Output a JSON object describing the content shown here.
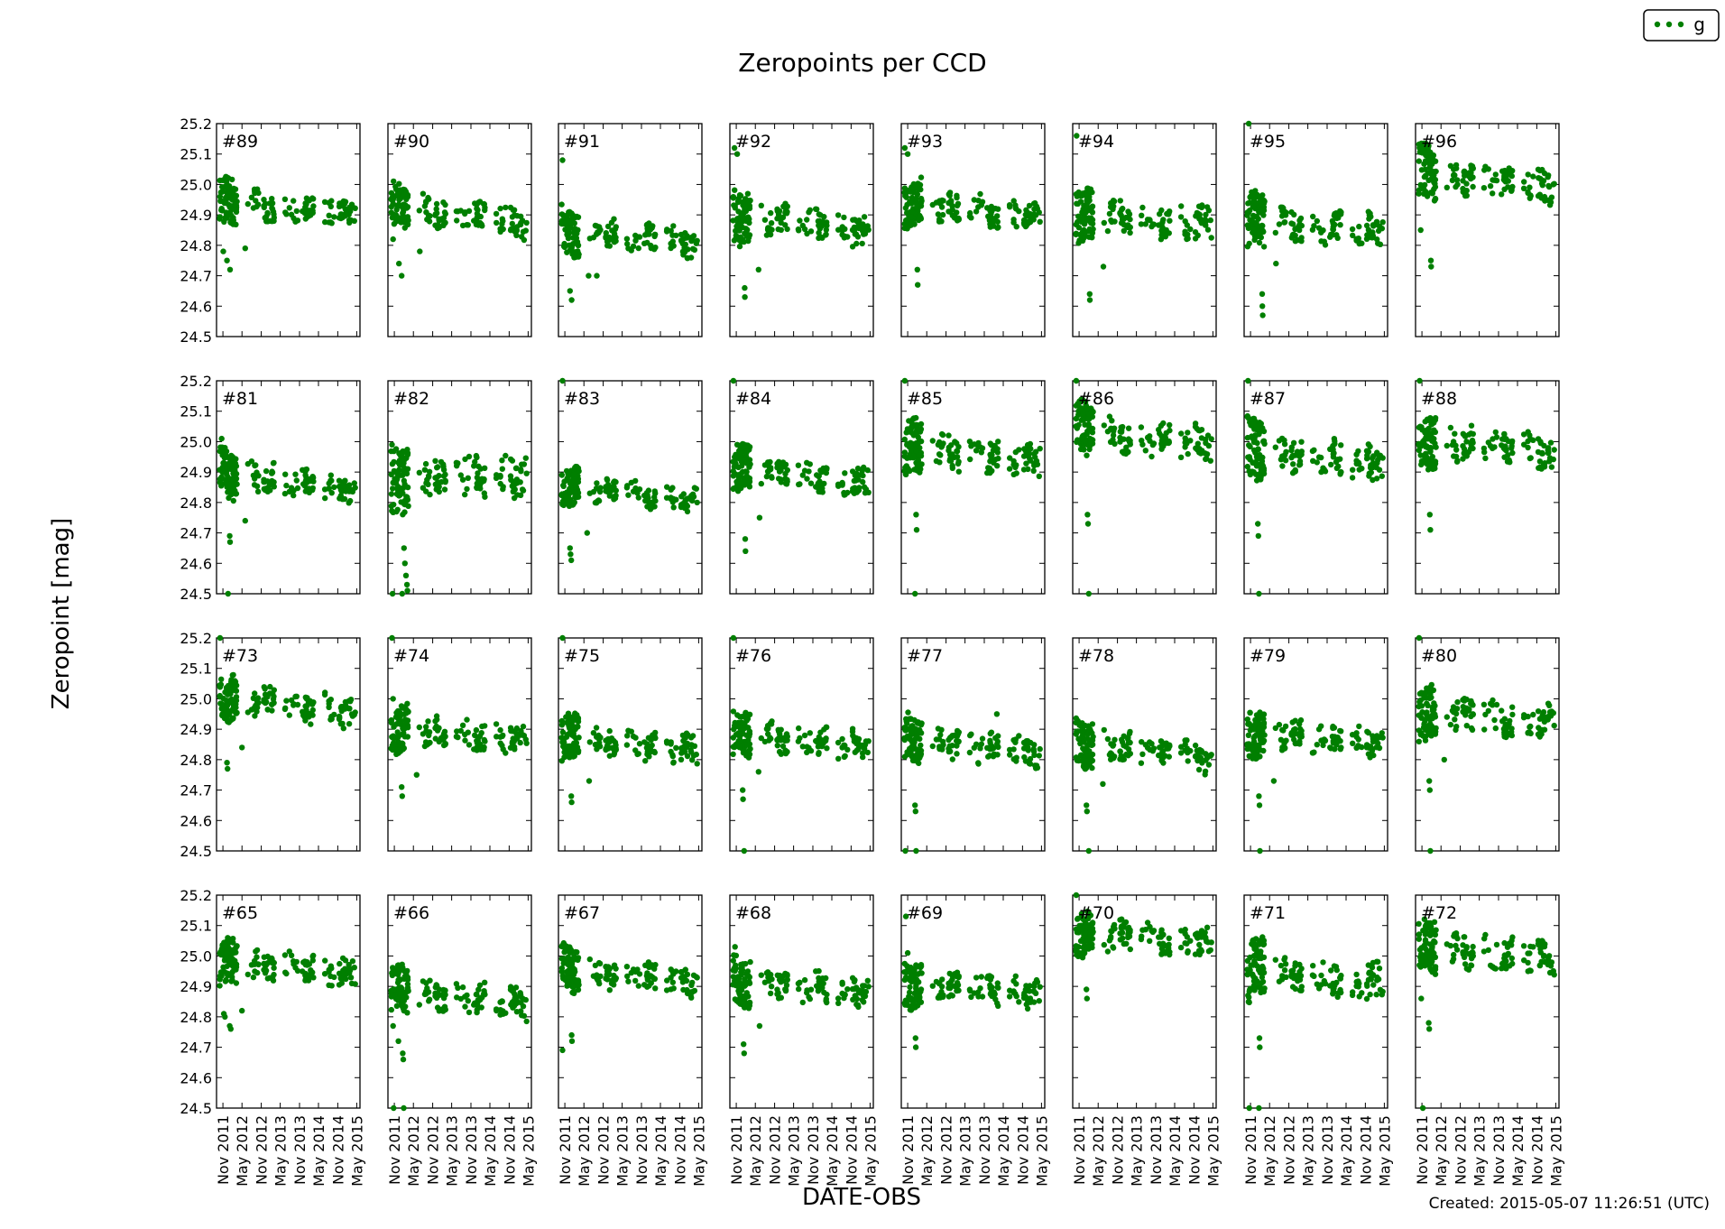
{
  "figure": {
    "title": "Zeropoints per CCD",
    "xlabel": "DATE-OBS",
    "ylabel": "Zeropoint [mag]",
    "created": "Created: 2015-05-07 11:26:51 (UTC)",
    "legend": {
      "label": "g",
      "position": "top-right"
    },
    "point_color": "#007f00"
  },
  "chart_data": {
    "type": "scatter",
    "layout": "small multiples, 4 rows x 8 columns, shared axes",
    "x_tick_labels": [
      "Nov 2011",
      "May 2012",
      "Nov 2012",
      "May 2013",
      "Nov 2013",
      "May 2014",
      "Nov 2014",
      "May 2015"
    ],
    "xlim": [
      "2011-09-01",
      "2015-06-01"
    ],
    "ylim": [
      24.5,
      25.2
    ],
    "y_ticks": [
      "24.5",
      "24.6",
      "24.7",
      "24.8",
      "24.9",
      "25.0",
      "25.1",
      "25.2"
    ],
    "grid": false,
    "series_name": "g",
    "panels": [
      {
        "label": "#89",
        "base": 24.94,
        "trend": -0.03,
        "scatter": 0.03,
        "outliers": [
          [
            "2011-11-05",
            24.78
          ],
          [
            "2011-12-10",
            24.75
          ],
          [
            "2012-01-08",
            24.72
          ],
          [
            "2012-06-01",
            24.79
          ]
        ]
      },
      {
        "label": "#90",
        "base": 24.93,
        "trend": -0.06,
        "scatter": 0.03,
        "outliers": [
          [
            "2011-10-20",
            24.82
          ],
          [
            "2011-12-15",
            24.74
          ],
          [
            "2012-01-10",
            24.7
          ],
          [
            "2012-07-01",
            24.78
          ]
        ]
      },
      {
        "label": "#91",
        "base": 24.85,
        "trend": -0.04,
        "scatter": 0.03,
        "outliers": [
          [
            "2011-10-10",
            25.08
          ],
          [
            "2011-12-20",
            24.65
          ],
          [
            "2012-01-05",
            24.62
          ],
          [
            "2012-06-15",
            24.7
          ],
          [
            "2012-09-01",
            24.7
          ]
        ]
      },
      {
        "label": "#92",
        "base": 24.9,
        "trend": -0.05,
        "scatter": 0.035,
        "outliers": [
          [
            "2011-10-15",
            25.12
          ],
          [
            "2011-11-10",
            25.1
          ],
          [
            "2012-01-20",
            24.66
          ],
          [
            "2012-01-22",
            24.63
          ],
          [
            "2012-06-01",
            24.72
          ]
        ]
      },
      {
        "label": "#93",
        "base": 24.94,
        "trend": -0.05,
        "scatter": 0.03,
        "outliers": [
          [
            "2011-10-05",
            25.12
          ],
          [
            "2011-11-01",
            25.1
          ],
          [
            "2012-02-01",
            24.72
          ],
          [
            "2012-02-05",
            24.67
          ]
        ]
      },
      {
        "label": "#94",
        "base": 24.9,
        "trend": -0.03,
        "scatter": 0.035,
        "outliers": [
          [
            "2011-10-08",
            25.16
          ],
          [
            "2012-02-10",
            24.64
          ],
          [
            "2012-02-12",
            24.62
          ],
          [
            "2012-06-20",
            24.73
          ]
        ]
      },
      {
        "label": "#95",
        "base": 24.88,
        "trend": -0.03,
        "scatter": 0.035,
        "outliers": [
          [
            "2011-10-15",
            25.2
          ],
          [
            "2012-02-20",
            24.64
          ],
          [
            "2012-02-22",
            24.6
          ],
          [
            "2012-02-25",
            24.57
          ],
          [
            "2012-07-01",
            24.74
          ]
        ]
      },
      {
        "label": "#96",
        "base": 25.04,
        "trend": -0.05,
        "scatter": 0.035,
        "outliers": [
          [
            "2011-10-20",
            24.85
          ],
          [
            "2012-01-25",
            24.75
          ],
          [
            "2012-01-28",
            24.73
          ]
        ]
      },
      {
        "label": "#81",
        "base": 24.9,
        "trend": -0.06,
        "scatter": 0.03,
        "outliers": [
          [
            "2011-10-20",
            25.01
          ],
          [
            "2011-11-20",
            24.98
          ],
          [
            "2012-01-05",
            24.69
          ],
          [
            "2012-01-08",
            24.67
          ],
          [
            "2011-12-20",
            24.5
          ],
          [
            "2012-06-01",
            24.74
          ]
        ]
      },
      {
        "label": "#82",
        "base": 24.88,
        "trend": 0.01,
        "scatter": 0.045,
        "outliers": [
          [
            "2011-10-10",
            24.99
          ],
          [
            "2012-02-01",
            24.65
          ],
          [
            "2012-02-10",
            24.6
          ],
          [
            "2012-02-20",
            24.56
          ],
          [
            "2012-03-01",
            24.53
          ],
          [
            "2012-03-05",
            24.51
          ],
          [
            "2011-10-15",
            24.5
          ],
          [
            "2012-01-15",
            24.5
          ]
        ]
      },
      {
        "label": "#83",
        "base": 24.86,
        "trend": -0.06,
        "scatter": 0.025,
        "outliers": [
          [
            "2011-10-10",
            25.2
          ],
          [
            "2011-12-20",
            24.65
          ],
          [
            "2011-12-25",
            24.63
          ],
          [
            "2012-01-01",
            24.61
          ],
          [
            "2012-06-01",
            24.7
          ]
        ]
      },
      {
        "label": "#84",
        "base": 24.92,
        "trend": -0.06,
        "scatter": 0.03,
        "outliers": [
          [
            "2011-10-05",
            25.2
          ],
          [
            "2011-11-10",
            24.99
          ],
          [
            "2012-01-25",
            24.68
          ],
          [
            "2012-01-28",
            24.64
          ],
          [
            "2012-06-10",
            24.75
          ]
        ]
      },
      {
        "label": "#85",
        "base": 24.98,
        "trend": -0.04,
        "scatter": 0.035,
        "outliers": [
          [
            "2011-10-05",
            25.2
          ],
          [
            "2012-01-20",
            24.76
          ],
          [
            "2012-01-25",
            24.71
          ],
          [
            "2012-01-10",
            24.5
          ]
        ]
      },
      {
        "label": "#86",
        "base": 25.04,
        "trend": -0.05,
        "scatter": 0.035,
        "outliers": [
          [
            "2011-10-05",
            25.2
          ],
          [
            "2012-01-20",
            24.76
          ],
          [
            "2012-01-25",
            24.73
          ],
          [
            "2012-02-01",
            24.5
          ]
        ]
      },
      {
        "label": "#87",
        "base": 24.98,
        "trend": -0.05,
        "scatter": 0.04,
        "outliers": [
          [
            "2011-10-08",
            25.2
          ],
          [
            "2012-01-10",
            24.73
          ],
          [
            "2012-01-15",
            24.69
          ],
          [
            "2012-01-20",
            24.5
          ]
        ]
      },
      {
        "label": "#88",
        "base": 25.01,
        "trend": -0.05,
        "scatter": 0.035,
        "outliers": [
          [
            "2011-10-10",
            25.2
          ],
          [
            "2012-01-15",
            24.76
          ],
          [
            "2012-01-20",
            24.71
          ]
        ]
      },
      {
        "label": "#73",
        "base": 25.01,
        "trend": -0.06,
        "scatter": 0.03,
        "outliers": [
          [
            "2011-10-05",
            25.2
          ],
          [
            "2011-12-10",
            24.79
          ],
          [
            "2011-12-15",
            24.77
          ],
          [
            "2012-05-01",
            24.84
          ]
        ]
      },
      {
        "label": "#74",
        "base": 24.9,
        "trend": -0.03,
        "scatter": 0.03,
        "outliers": [
          [
            "2011-10-10",
            25.2
          ],
          [
            "2011-10-20",
            25.0
          ],
          [
            "2012-01-10",
            24.71
          ],
          [
            "2012-01-15",
            24.68
          ],
          [
            "2012-06-01",
            24.75
          ]
        ]
      },
      {
        "label": "#75",
        "base": 24.87,
        "trend": -0.04,
        "scatter": 0.03,
        "outliers": [
          [
            "2011-10-10",
            25.2
          ],
          [
            "2012-01-01",
            24.68
          ],
          [
            "2012-01-05",
            24.66
          ],
          [
            "2012-06-20",
            24.73
          ]
        ]
      },
      {
        "label": "#76",
        "base": 24.89,
        "trend": -0.05,
        "scatter": 0.03,
        "outliers": [
          [
            "2011-10-05",
            25.2
          ],
          [
            "2012-01-01",
            24.7
          ],
          [
            "2012-01-05",
            24.67
          ],
          [
            "2012-06-01",
            24.76
          ],
          [
            "2012-01-15",
            24.5
          ]
        ]
      },
      {
        "label": "#77",
        "base": 24.87,
        "trend": -0.05,
        "scatter": 0.03,
        "outliers": [
          [
            "2014-03-01",
            24.95
          ],
          [
            "2012-01-10",
            24.65
          ],
          [
            "2012-01-15",
            24.63
          ],
          [
            "2011-10-10",
            24.5
          ],
          [
            "2012-01-20",
            24.5
          ]
        ]
      },
      {
        "label": "#78",
        "base": 24.86,
        "trend": -0.06,
        "scatter": 0.03,
        "outliers": [
          [
            "2012-01-10",
            24.65
          ],
          [
            "2012-01-15",
            24.63
          ],
          [
            "2012-06-15",
            24.72
          ],
          [
            "2012-02-01",
            24.5
          ]
        ]
      },
      {
        "label": "#79",
        "base": 24.89,
        "trend": -0.03,
        "scatter": 0.03,
        "outliers": [
          [
            "2012-01-20",
            24.68
          ],
          [
            "2012-01-25",
            24.65
          ],
          [
            "2012-06-10",
            24.73
          ],
          [
            "2012-01-30",
            24.5
          ]
        ]
      },
      {
        "label": "#80",
        "base": 24.96,
        "trend": -0.04,
        "scatter": 0.035,
        "outliers": [
          [
            "2011-10-05",
            25.2
          ],
          [
            "2012-01-10",
            24.73
          ],
          [
            "2012-01-15",
            24.7
          ],
          [
            "2012-06-01",
            24.8
          ],
          [
            "2012-01-20",
            24.5
          ]
        ]
      },
      {
        "label": "#65",
        "base": 24.98,
        "trend": -0.04,
        "scatter": 0.03,
        "outliers": [
          [
            "2011-11-10",
            24.81
          ],
          [
            "2011-11-20",
            24.8
          ],
          [
            "2012-01-05",
            24.77
          ],
          [
            "2012-01-15",
            24.76
          ],
          [
            "2012-05-01",
            24.82
          ]
        ]
      },
      {
        "label": "#66",
        "base": 24.89,
        "trend": -0.05,
        "scatter": 0.03,
        "outliers": [
          [
            "2011-10-20",
            24.77
          ],
          [
            "2011-12-10",
            24.72
          ],
          [
            "2012-01-20",
            24.68
          ],
          [
            "2012-01-25",
            24.66
          ],
          [
            "2011-10-25",
            24.5
          ],
          [
            "2012-01-30",
            24.5
          ]
        ]
      },
      {
        "label": "#67",
        "base": 24.96,
        "trend": -0.05,
        "scatter": 0.03,
        "outliers": [
          [
            "2011-10-20",
            25.03
          ],
          [
            "2011-10-10",
            24.69
          ],
          [
            "2012-01-05",
            24.74
          ],
          [
            "2012-01-08",
            24.72
          ]
        ]
      },
      {
        "label": "#68",
        "base": 24.92,
        "trend": -0.04,
        "scatter": 0.03,
        "outliers": [
          [
            "2011-10-20",
            25.03
          ],
          [
            "2012-01-10",
            24.71
          ],
          [
            "2012-01-15",
            24.68
          ],
          [
            "2012-06-10",
            24.77
          ]
        ]
      },
      {
        "label": "#69",
        "base": 24.91,
        "trend": -0.03,
        "scatter": 0.03,
        "outliers": [
          [
            "2011-10-15",
            25.13
          ],
          [
            "2011-11-01",
            25.01
          ],
          [
            "2012-01-15",
            24.73
          ],
          [
            "2012-01-18",
            24.7
          ]
        ]
      },
      {
        "label": "#70",
        "base": 25.08,
        "trend": -0.04,
        "scatter": 0.03,
        "outliers": [
          [
            "2011-10-05",
            25.2
          ],
          [
            "2012-01-10",
            24.89
          ],
          [
            "2012-01-15",
            24.86
          ]
        ]
      },
      {
        "label": "#71",
        "base": 24.96,
        "trend": -0.05,
        "scatter": 0.04,
        "outliers": [
          [
            "2011-10-15",
            24.85
          ],
          [
            "2012-01-25",
            24.73
          ],
          [
            "2012-01-28",
            24.7
          ],
          [
            "2011-10-20",
            24.5
          ],
          [
            "2012-01-20",
            24.5
          ]
        ]
      },
      {
        "label": "#72",
        "base": 25.03,
        "trend": -0.04,
        "scatter": 0.035,
        "outliers": [
          [
            "2011-10-25",
            24.86
          ],
          [
            "2012-01-05",
            24.78
          ],
          [
            "2012-01-10",
            24.76
          ],
          [
            "2011-11-10",
            24.5
          ]
        ]
      }
    ]
  }
}
